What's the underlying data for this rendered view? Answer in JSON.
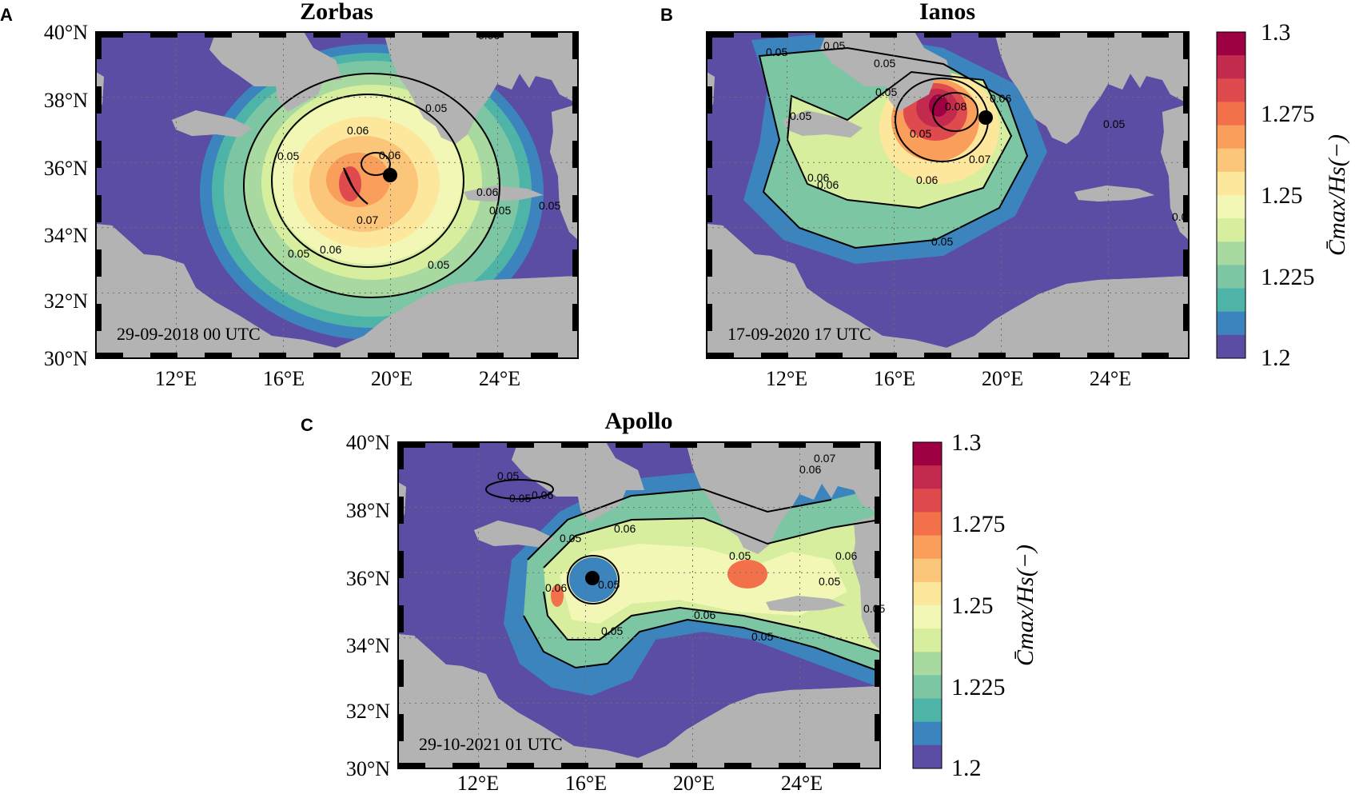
{
  "colors": {
    "sea": "#5B4DA4",
    "land": "#B3B3B3",
    "grid": "#6e6e6e",
    "scale": [
      "#5B4DA4",
      "#3B84BE",
      "#4FB4A8",
      "#7CC6A3",
      "#A7D9A0",
      "#D6EE9E",
      "#F3F7B6",
      "#FDE79C",
      "#FBC57A",
      "#F99E5B",
      "#F2704A",
      "#DE4A4E",
      "#C32B4E",
      "#9E0142"
    ]
  },
  "panels": [
    {
      "letter": "A",
      "title": "Zorbas",
      "timestamp": "29-09-2018 00 UTC",
      "cyclone_center": {
        "lon": 20.0,
        "lat": 35.75
      },
      "contour_labels": [
        "0.06",
        "0.06",
        "0.05",
        "0.05",
        "0.06",
        "0.05",
        "0.05",
        "0.07",
        "0.06",
        "0.05",
        "0.06",
        "0.05"
      ]
    },
    {
      "letter": "B",
      "title": "Ianos",
      "timestamp": "17-09-2020 17 UTC",
      "cyclone_center": {
        "lon": 19.4,
        "lat": 37.5
      },
      "contour_labels": [
        "0.05",
        "0.05",
        "0.05",
        "0.05",
        "0.06",
        "0.08",
        "0.06",
        "0.07",
        "0.06",
        "0.05",
        "0.06",
        "0.05",
        "0.05",
        "0.05",
        "0.0"
      ]
    },
    {
      "letter": "C",
      "title": "Apollo",
      "timestamp": "29-10-2021 01 UTC",
      "cyclone_center": {
        "lon": 16.1,
        "lat": 36.0
      },
      "contour_labels": [
        "0.05",
        "0.05",
        "0.06",
        "0.06",
        "0.05",
        "0.05",
        "0.06",
        "0.05",
        "0.06",
        "0.05",
        "0.05",
        "0.05",
        "0.06",
        "0.07",
        "0.06",
        "0.05"
      ]
    }
  ],
  "axes": {
    "lat_ticks": [
      "40°N",
      "38°N",
      "36°N",
      "34°N",
      "32°N",
      "30°N"
    ],
    "lon_ticks": [
      "12°E",
      "16°E",
      "20°E",
      "24°E"
    ],
    "lon_range": [
      9,
      27
    ],
    "lat_range": [
      30,
      40
    ]
  },
  "colorbar": {
    "ticks": [
      "1.3",
      "1.275",
      "1.25",
      "1.225",
      "1.2"
    ],
    "range": [
      1.2,
      1.3
    ],
    "label": "C̄max/Hs(−)"
  }
}
